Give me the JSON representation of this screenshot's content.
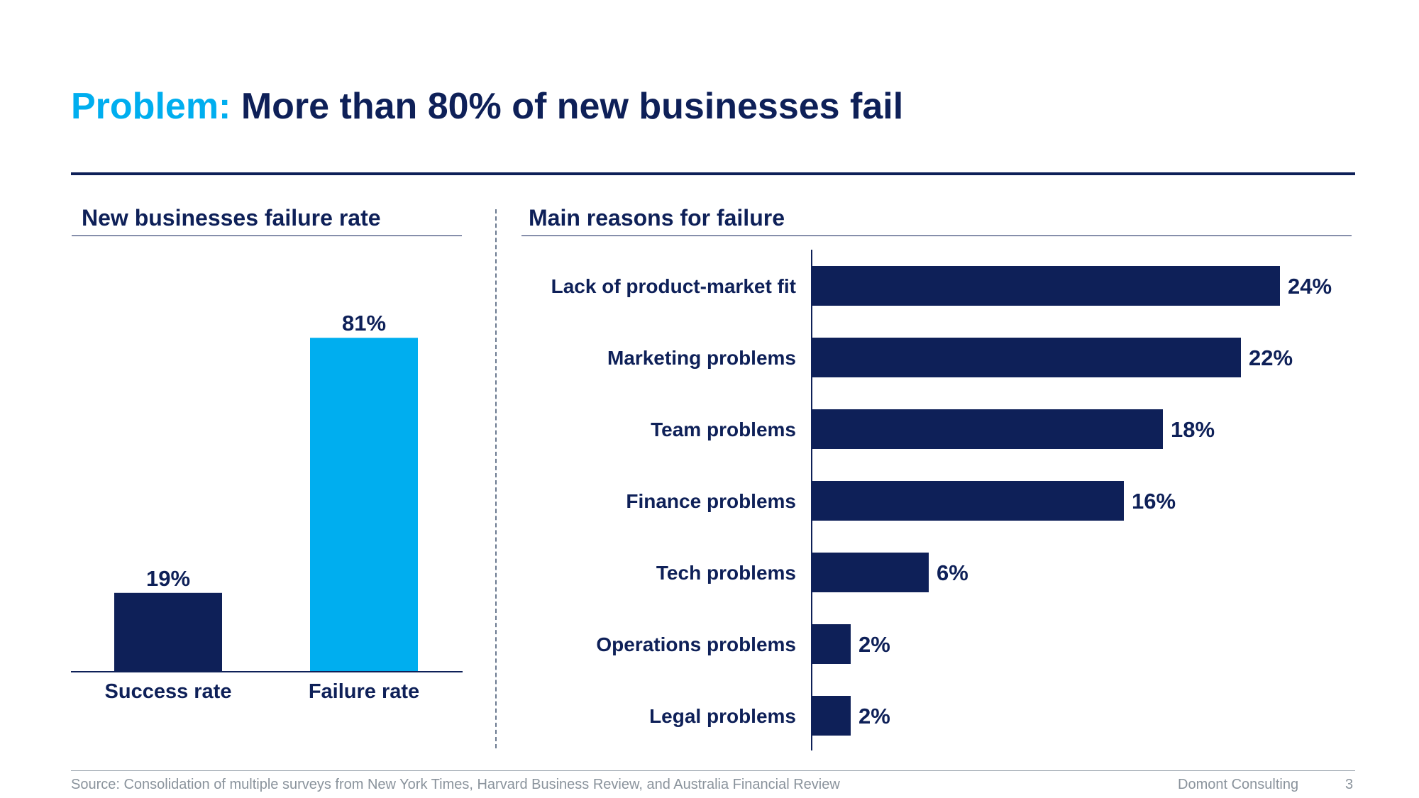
{
  "title": {
    "accent": "Problem:",
    "main": " More than 80% of new businesses fail"
  },
  "footer": {
    "source": "Source: Consolidation of multiple  surveys from New York Times, Harvard Business Review, and Australia Financial Review",
    "company": "Domont Consulting",
    "page": "3"
  },
  "colors": {
    "navy": "#0e2058",
    "cyan": "#00aeef"
  },
  "chart_data": [
    {
      "type": "bar",
      "title": "New businesses  failure rate",
      "categories": [
        "Success rate",
        "Failure rate"
      ],
      "values": [
        19,
        81
      ],
      "value_labels": [
        "19%",
        "81%"
      ],
      "bar_colors": [
        "#0e2058",
        "#00aeef"
      ],
      "ylim": [
        0,
        100
      ],
      "grid": false,
      "legend": "none"
    },
    {
      "type": "bar",
      "orientation": "horizontal",
      "title": "Main reasons for failure",
      "categories": [
        "Lack of product-market fit",
        "Marketing problems",
        "Team problems",
        "Finance problems",
        "Tech problems",
        "Operations problems",
        "Legal problems"
      ],
      "values": [
        24,
        22,
        18,
        16,
        6,
        2,
        2
      ],
      "value_labels": [
        "24%",
        "22%",
        "18%",
        "16%",
        "6%",
        "2%",
        "2%"
      ],
      "bar_color": "#0e2058",
      "xlim": [
        0,
        24
      ],
      "grid": false,
      "legend": "none"
    }
  ]
}
